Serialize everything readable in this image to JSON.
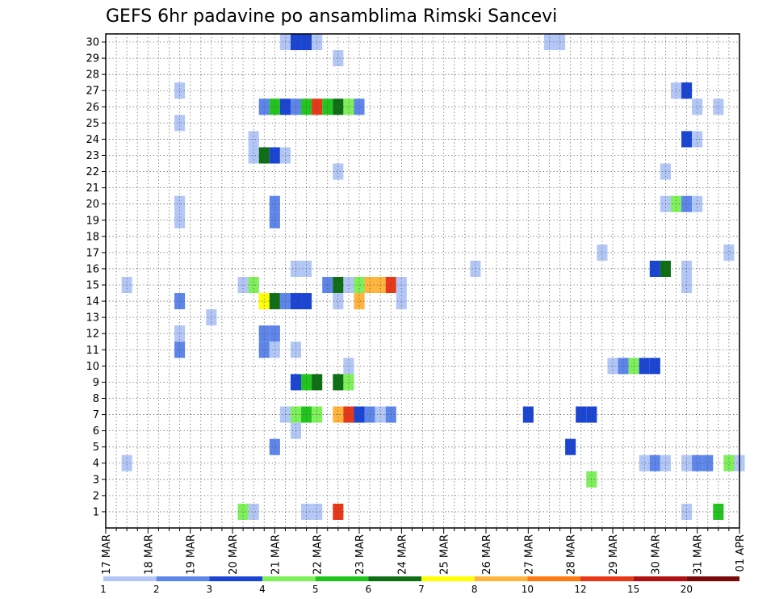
{
  "chart_data": {
    "type": "heatmap",
    "title": "GEFS 6hr padavine po ansamblima Rimski Sancevi",
    "xlabel": "",
    "ylabel": "",
    "y_members": [
      "1",
      "2",
      "3",
      "4",
      "5",
      "6",
      "7",
      "8",
      "9",
      "10",
      "11",
      "12",
      "13",
      "14",
      "15",
      "16",
      "17",
      "18",
      "19",
      "20",
      "21",
      "22",
      "23",
      "24",
      "25",
      "26",
      "27",
      "28",
      "29",
      "30"
    ],
    "x_ticks": [
      "17 MAR",
      "18 MAR",
      "19 MAR",
      "20 MAR",
      "21 MAR",
      "22 MAR",
      "23 MAR",
      "24 MAR",
      "25 MAR",
      "26 MAR",
      "27 MAR",
      "28 MAR",
      "29 MAR",
      "30 MAR",
      "31 MAR",
      "01 APR"
    ],
    "x_range_steps": [
      0,
      60
    ],
    "steps_per_day": 4,
    "grid": true,
    "legend_placement": "bottom",
    "colorbar": {
      "labels": [
        "1",
        "2",
        "3",
        "4",
        "5",
        "6",
        "7",
        "8",
        "10",
        "12",
        "15",
        "20"
      ],
      "colors": [
        "#b3c7f7",
        "#5d85ea",
        "#1a44d4",
        "#7df05a",
        "#22c41e",
        "#0e6e14",
        "#ffff00",
        "#ffb43c",
        "#ff7a10",
        "#e83818",
        "#b01010",
        "#780a0a"
      ]
    },
    "cells": [
      {
        "m": 30,
        "s": 17,
        "v": 1
      },
      {
        "m": 30,
        "s": 18,
        "v": 3
      },
      {
        "m": 30,
        "s": 19,
        "v": 3
      },
      {
        "m": 30,
        "s": 20,
        "v": 1
      },
      {
        "m": 30,
        "s": 42,
        "v": 1
      },
      {
        "m": 30,
        "s": 43,
        "v": 1
      },
      {
        "m": 29,
        "s": 22,
        "v": 1
      },
      {
        "m": 27,
        "s": 7,
        "v": 1
      },
      {
        "m": 27,
        "s": 54,
        "v": 1
      },
      {
        "m": 27,
        "s": 55,
        "v": 3
      },
      {
        "m": 26,
        "s": 15,
        "v": 2
      },
      {
        "m": 26,
        "s": 16,
        "v": 5
      },
      {
        "m": 26,
        "s": 17,
        "v": 3
      },
      {
        "m": 26,
        "s": 18,
        "v": 2
      },
      {
        "m": 26,
        "s": 19,
        "v": 5
      },
      {
        "m": 26,
        "s": 20,
        "v": 10
      },
      {
        "m": 26,
        "s": 21,
        "v": 5
      },
      {
        "m": 26,
        "s": 22,
        "v": 6
      },
      {
        "m": 26,
        "s": 23,
        "v": 4
      },
      {
        "m": 26,
        "s": 24,
        "v": 2
      },
      {
        "m": 26,
        "s": 56,
        "v": 1
      },
      {
        "m": 26,
        "s": 58,
        "v": 1
      },
      {
        "m": 25,
        "s": 7,
        "v": 1
      },
      {
        "m": 24,
        "s": 14,
        "v": 1
      },
      {
        "m": 24,
        "s": 55,
        "v": 3
      },
      {
        "m": 24,
        "s": 56,
        "v": 1
      },
      {
        "m": 23,
        "s": 14,
        "v": 1
      },
      {
        "m": 23,
        "s": 15,
        "v": 6
      },
      {
        "m": 23,
        "s": 16,
        "v": 3
      },
      {
        "m": 23,
        "s": 17,
        "v": 1
      },
      {
        "m": 22,
        "s": 22,
        "v": 1
      },
      {
        "m": 22,
        "s": 53,
        "v": 1
      },
      {
        "m": 20,
        "s": 7,
        "v": 1
      },
      {
        "m": 20,
        "s": 16,
        "v": 2
      },
      {
        "m": 20,
        "s": 53,
        "v": 1
      },
      {
        "m": 20,
        "s": 54,
        "v": 4
      },
      {
        "m": 20,
        "s": 55,
        "v": 2
      },
      {
        "m": 20,
        "s": 56,
        "v": 1
      },
      {
        "m": 19,
        "s": 7,
        "v": 1
      },
      {
        "m": 19,
        "s": 16,
        "v": 2
      },
      {
        "m": 17,
        "s": 47,
        "v": 1
      },
      {
        "m": 17,
        "s": 59,
        "v": 1
      },
      {
        "m": 16,
        "s": 18,
        "v": 1
      },
      {
        "m": 16,
        "s": 19,
        "v": 1
      },
      {
        "m": 16,
        "s": 35,
        "v": 1
      },
      {
        "m": 16,
        "s": 52,
        "v": 3
      },
      {
        "m": 16,
        "s": 53,
        "v": 6
      },
      {
        "m": 16,
        "s": 55,
        "v": 1
      },
      {
        "m": 15,
        "s": 2,
        "v": 1
      },
      {
        "m": 15,
        "s": 13,
        "v": 1
      },
      {
        "m": 15,
        "s": 14,
        "v": 4
      },
      {
        "m": 15,
        "s": 21,
        "v": 2
      },
      {
        "m": 15,
        "s": 22,
        "v": 6
      },
      {
        "m": 15,
        "s": 23,
        "v": 1
      },
      {
        "m": 15,
        "s": 24,
        "v": 4
      },
      {
        "m": 15,
        "s": 25,
        "v": 8
      },
      {
        "m": 15,
        "s": 26,
        "v": 8
      },
      {
        "m": 15,
        "s": 27,
        "v": 10
      },
      {
        "m": 15,
        "s": 28,
        "v": 1
      },
      {
        "m": 15,
        "s": 55,
        "v": 1
      },
      {
        "m": 14,
        "s": 7,
        "v": 2
      },
      {
        "m": 14,
        "s": 15,
        "v": 7
      },
      {
        "m": 14,
        "s": 16,
        "v": 6
      },
      {
        "m": 14,
        "s": 17,
        "v": 2
      },
      {
        "m": 14,
        "s": 18,
        "v": 3
      },
      {
        "m": 14,
        "s": 19,
        "v": 3
      },
      {
        "m": 14,
        "s": 22,
        "v": 1
      },
      {
        "m": 14,
        "s": 24,
        "v": 8
      },
      {
        "m": 14,
        "s": 28,
        "v": 1
      },
      {
        "m": 13,
        "s": 10,
        "v": 1
      },
      {
        "m": 12,
        "s": 7,
        "v": 1
      },
      {
        "m": 12,
        "s": 15,
        "v": 2
      },
      {
        "m": 12,
        "s": 16,
        "v": 2
      },
      {
        "m": 11,
        "s": 7,
        "v": 2
      },
      {
        "m": 11,
        "s": 15,
        "v": 2
      },
      {
        "m": 11,
        "s": 16,
        "v": 1
      },
      {
        "m": 11,
        "s": 18,
        "v": 1
      },
      {
        "m": 10,
        "s": 23,
        "v": 1
      },
      {
        "m": 10,
        "s": 48,
        "v": 1
      },
      {
        "m": 10,
        "s": 49,
        "v": 2
      },
      {
        "m": 10,
        "s": 50,
        "v": 4
      },
      {
        "m": 10,
        "s": 51,
        "v": 3
      },
      {
        "m": 10,
        "s": 52,
        "v": 3
      },
      {
        "m": 9,
        "s": 18,
        "v": 3
      },
      {
        "m": 9,
        "s": 19,
        "v": 5
      },
      {
        "m": 9,
        "s": 20,
        "v": 6
      },
      {
        "m": 9,
        "s": 22,
        "v": 6
      },
      {
        "m": 9,
        "s": 23,
        "v": 4
      },
      {
        "m": 7,
        "s": 17,
        "v": 1
      },
      {
        "m": 7,
        "s": 18,
        "v": 4
      },
      {
        "m": 7,
        "s": 19,
        "v": 5
      },
      {
        "m": 7,
        "s": 20,
        "v": 4
      },
      {
        "m": 7,
        "s": 22,
        "v": 8
      },
      {
        "m": 7,
        "s": 23,
        "v": 10
      },
      {
        "m": 7,
        "s": 24,
        "v": 3
      },
      {
        "m": 7,
        "s": 25,
        "v": 2
      },
      {
        "m": 7,
        "s": 26,
        "v": 1
      },
      {
        "m": 7,
        "s": 27,
        "v": 2
      },
      {
        "m": 7,
        "s": 40,
        "v": 3
      },
      {
        "m": 7,
        "s": 45,
        "v": 3
      },
      {
        "m": 7,
        "s": 46,
        "v": 3
      },
      {
        "m": 6,
        "s": 18,
        "v": 1
      },
      {
        "m": 5,
        "s": 16,
        "v": 2
      },
      {
        "m": 5,
        "s": 44,
        "v": 3
      },
      {
        "m": 4,
        "s": 2,
        "v": 1
      },
      {
        "m": 4,
        "s": 51,
        "v": 1
      },
      {
        "m": 4,
        "s": 52,
        "v": 2
      },
      {
        "m": 4,
        "s": 53,
        "v": 1
      },
      {
        "m": 4,
        "s": 55,
        "v": 1
      },
      {
        "m": 4,
        "s": 56,
        "v": 2
      },
      {
        "m": 4,
        "s": 57,
        "v": 2
      },
      {
        "m": 4,
        "s": 59,
        "v": 4
      },
      {
        "m": 4,
        "s": 60,
        "v": 1
      },
      {
        "m": 3,
        "s": 46,
        "v": 4
      },
      {
        "m": 1,
        "s": 13,
        "v": 4
      },
      {
        "m": 1,
        "s": 14,
        "v": 1
      },
      {
        "m": 1,
        "s": 19,
        "v": 1
      },
      {
        "m": 1,
        "s": 20,
        "v": 1
      },
      {
        "m": 1,
        "s": 22,
        "v": 10
      },
      {
        "m": 1,
        "s": 55,
        "v": 1
      },
      {
        "m": 1,
        "s": 58,
        "v": 5
      }
    ]
  }
}
